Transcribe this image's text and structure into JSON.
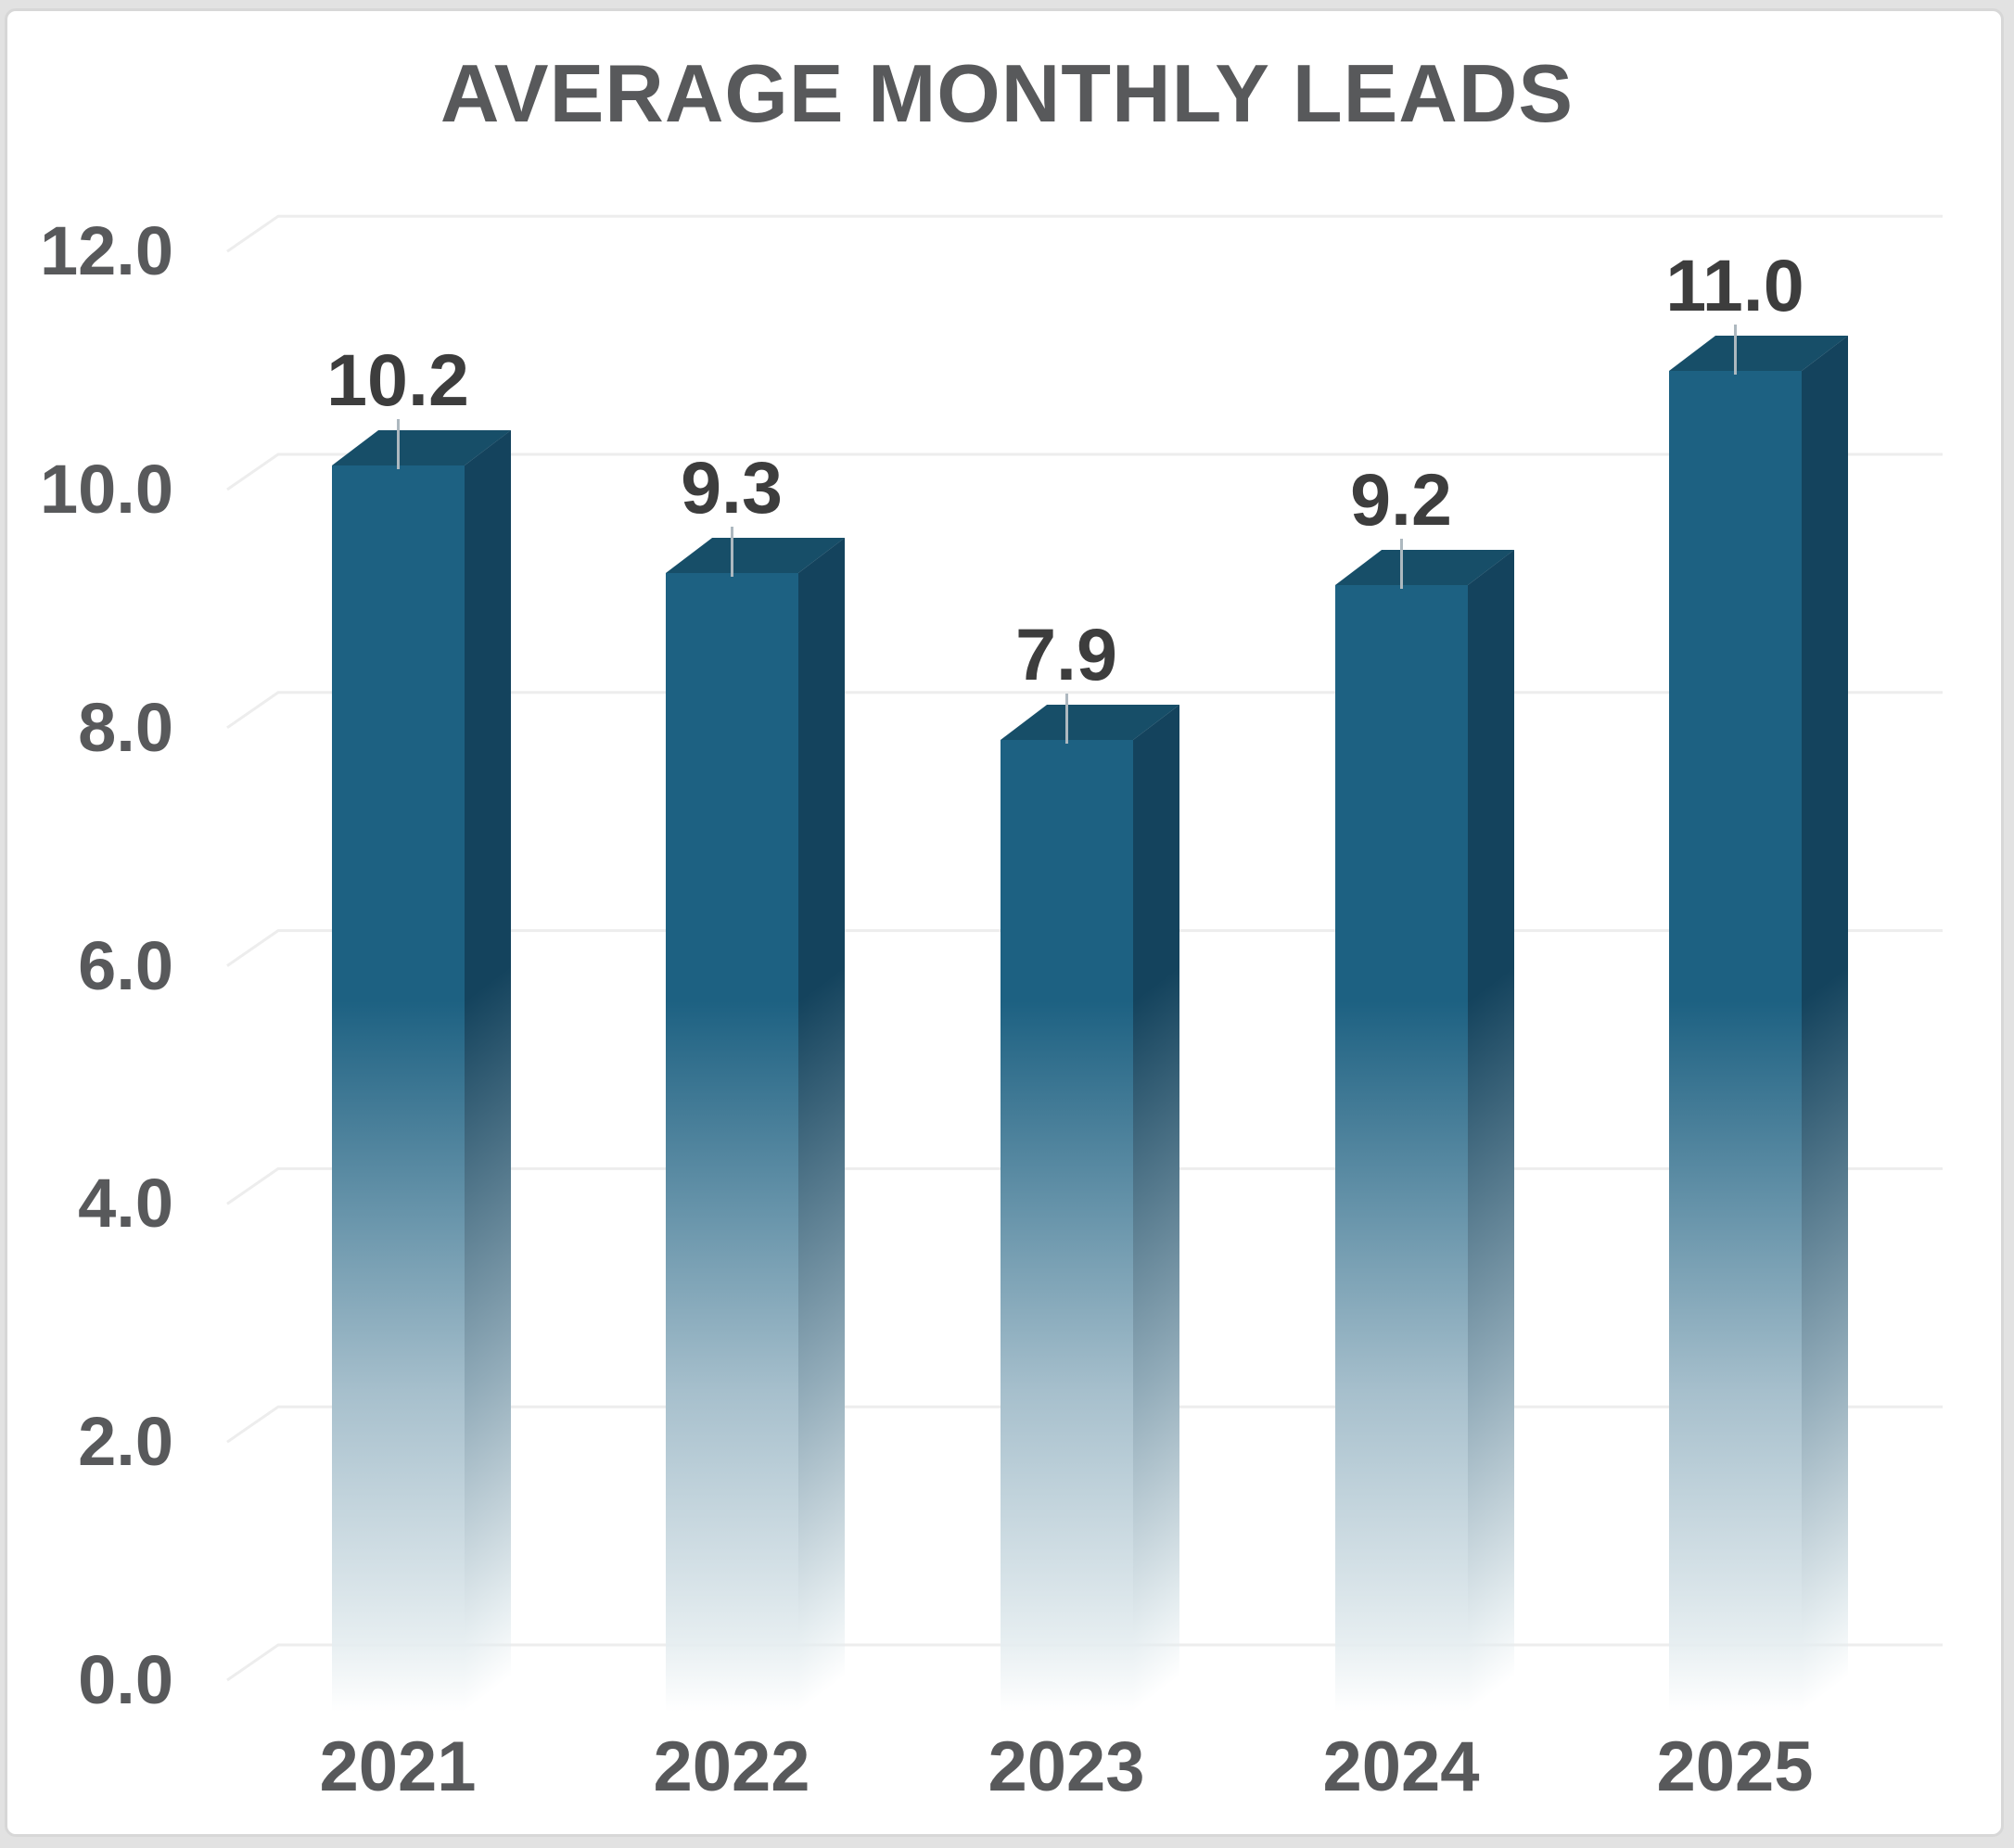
{
  "title": "AVERAGE MONTHLY LEADS",
  "chart_data": {
    "type": "bar",
    "style": "3d-column",
    "title": "AVERAGE MONTHLY LEADS",
    "categories": [
      "2021",
      "2022",
      "2023",
      "2024",
      "2025"
    ],
    "values": [
      10.2,
      9.3,
      7.9,
      9.2,
      11.0
    ],
    "data_labels": [
      "10.2",
      "9.3",
      "7.9",
      "9.2",
      "11.0"
    ],
    "xlabel": "",
    "ylabel": "",
    "ylim": [
      0,
      12
    ],
    "ytick_step": 2,
    "ytick_labels": [
      "0.0",
      "2.0",
      "4.0",
      "6.0",
      "8.0",
      "10.0",
      "12.0"
    ],
    "grid": true,
    "legend": false,
    "colors": {
      "bar_front": "#1d6182",
      "bar_side": "#14435d",
      "bar_top": "#174e68",
      "bar_fade_mid_front": "#a6bfcc",
      "bar_fade_mid_side": "#90aab8",
      "bar_fade_light": "#e5edf0",
      "gridline": "#ededed",
      "axis_text": "#58595b",
      "data_label_text": "#3d3d3d",
      "title_text": "#58595b",
      "leader_line": "#adb8bf",
      "card_background": "#ffffff",
      "card_border": "#d7d7d7",
      "page_background": "#e2e2e2"
    }
  }
}
